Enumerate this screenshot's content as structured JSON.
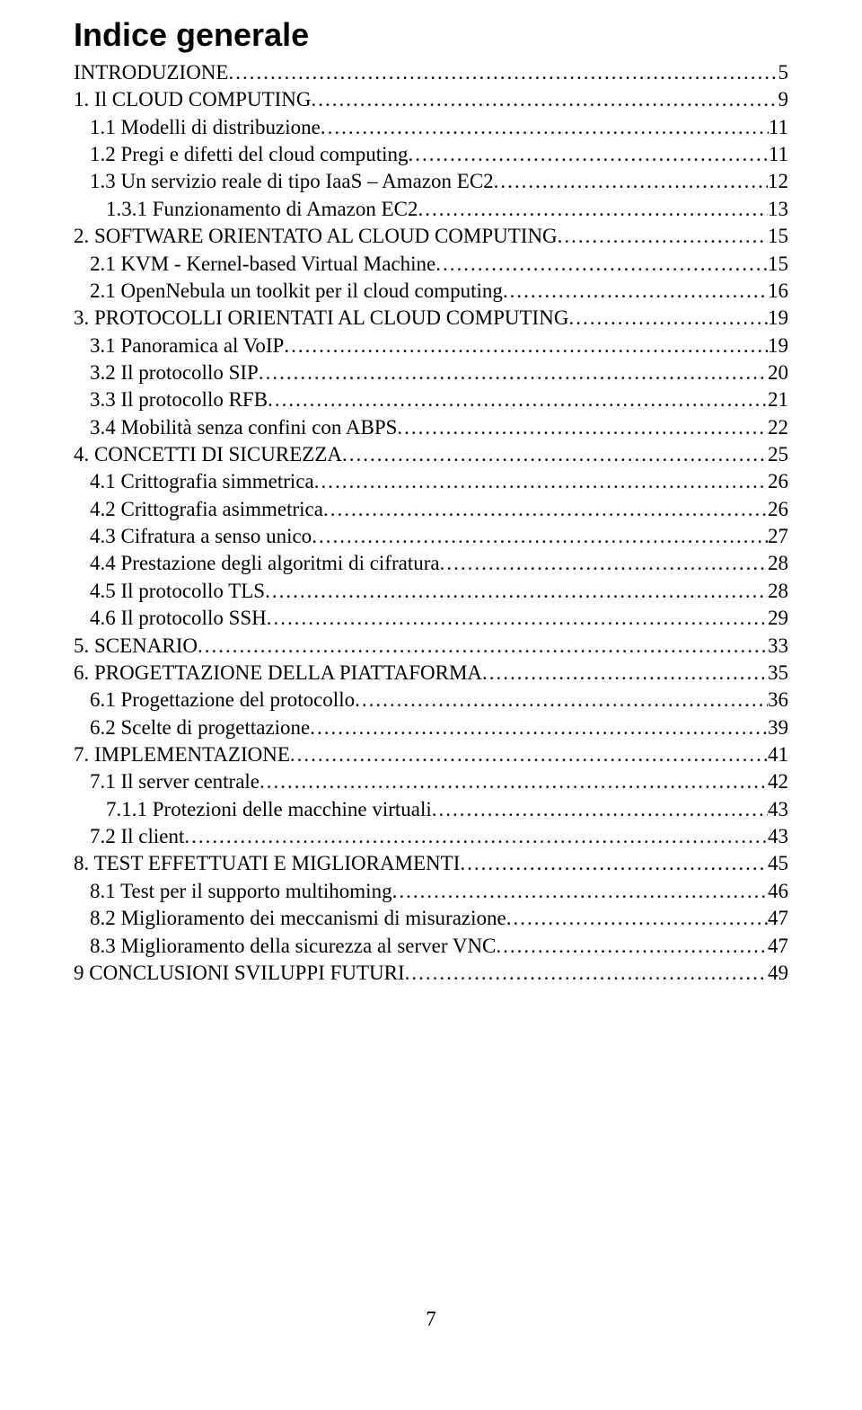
{
  "title": "Indice generale",
  "page_number": "7",
  "entries": [
    {
      "label": "INTRODUZIONE",
      "page": "5",
      "indent": 0
    },
    {
      "label": "1. Il CLOUD COMPUTING",
      "page": "9",
      "indent": 0
    },
    {
      "label": "1.1 Modelli di distribuzione",
      "page": "11",
      "indent": 1
    },
    {
      "label": "1.2 Pregi e difetti del cloud computing",
      "page": "11",
      "indent": 1
    },
    {
      "label": "1.3 Un servizio reale di tipo IaaS – Amazon EC2",
      "page": "12",
      "indent": 1
    },
    {
      "label": "1.3.1 Funzionamento di Amazon EC2",
      "page": "13",
      "indent": 2
    },
    {
      "label": "2. SOFTWARE ORIENTATO AL CLOUD COMPUTING",
      "page": "15",
      "indent": 0
    },
    {
      "label": "2.1 KVM - Kernel-based Virtual Machine",
      "page": "15",
      "indent": 1
    },
    {
      "label": "2.1 OpenNebula un toolkit per il cloud computing",
      "page": "16",
      "indent": 1
    },
    {
      "label": "3. PROTOCOLLI ORIENTATI AL CLOUD COMPUTING",
      "page": "19",
      "indent": 0
    },
    {
      "label": "3.1 Panoramica al VoIP",
      "page": "19",
      "indent": 1
    },
    {
      "label": "3.2 Il protocollo SIP",
      "page": "20",
      "indent": 1
    },
    {
      "label": "3.3 Il protocollo RFB",
      "page": "21",
      "indent": 1
    },
    {
      "label": "3.4 Mobilità senza confini con ABPS",
      "page": "22",
      "indent": 1
    },
    {
      "label": "4. CONCETTI DI SICUREZZA",
      "page": "25",
      "indent": 0
    },
    {
      "label": "4.1 Crittografia simmetrica",
      "page": "26",
      "indent": 1
    },
    {
      "label": "4.2 Crittografia asimmetrica",
      "page": "26",
      "indent": 1
    },
    {
      "label": "4.3 Cifratura a senso unico",
      "page": "27",
      "indent": 1
    },
    {
      "label": "4.4 Prestazione degli algoritmi di cifratura",
      "page": "28",
      "indent": 1
    },
    {
      "label": "4.5 Il protocollo TLS",
      "page": "28",
      "indent": 1
    },
    {
      "label": "4.6 Il protocollo SSH",
      "page": "29",
      "indent": 1
    },
    {
      "label": "5. SCENARIO",
      "page": "33",
      "indent": 0
    },
    {
      "label": "6. PROGETTAZIONE DELLA PIATTAFORMA",
      "page": "35",
      "indent": 0
    },
    {
      "label": "6.1 Progettazione del protocollo",
      "page": "36",
      "indent": 1
    },
    {
      "label": "6.2 Scelte di progettazione",
      "page": "39",
      "indent": 1
    },
    {
      "label": "7. IMPLEMENTAZIONE",
      "page": "41",
      "indent": 0
    },
    {
      "label": "7.1 Il server centrale",
      "page": "42",
      "indent": 1
    },
    {
      "label": "7.1.1 Protezioni delle macchine virtuali",
      "page": "43",
      "indent": 2
    },
    {
      "label": "7.2 Il client",
      "page": "43",
      "indent": 1
    },
    {
      "label": "8.  TEST EFFETTUATI E MIGLIORAMENTI",
      "page": "45",
      "indent": 0
    },
    {
      "label": "8.1 Test per il supporto multihoming",
      "page": "46",
      "indent": 1
    },
    {
      "label": "8.2 Miglioramento dei meccanismi di misurazione",
      "page": "47",
      "indent": 1
    },
    {
      "label": "8.3 Miglioramento della sicurezza al server VNC",
      "page": "47",
      "indent": 1
    },
    {
      "label": "9 CONCLUSIONI SVILUPPI FUTURI",
      "page": "49",
      "indent": 0
    }
  ]
}
